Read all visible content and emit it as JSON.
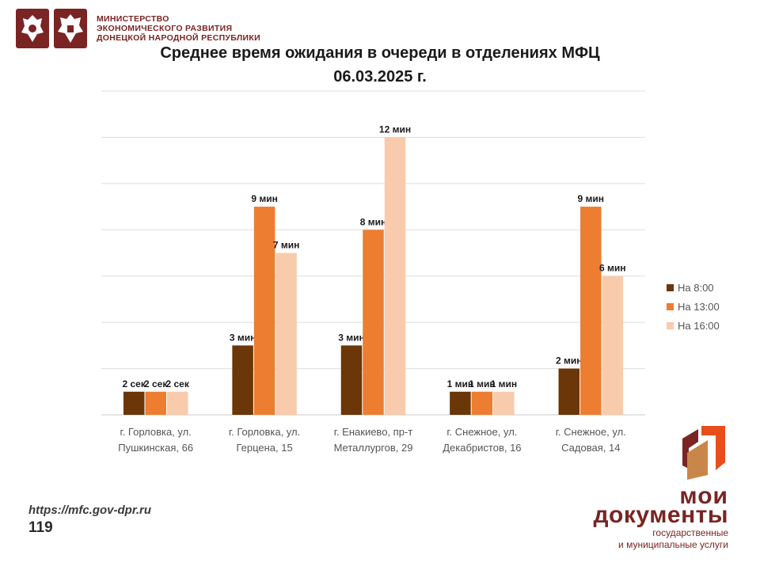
{
  "header": {
    "ministry_line1": "МИНИСТЕРСТВО",
    "ministry_line2": "ЭКОНОМИЧЕСКОГО РАЗВИТИЯ",
    "ministry_line3": "ДОНЕЦКОЙ НАРОДНОЙ РЕСПУБЛИКИ"
  },
  "footer": {
    "url": "https://mfc.gov-dpr.ru",
    "page_number": "119"
  },
  "brand": {
    "line1": "мои",
    "line2": "документы",
    "line3": "государственные",
    "line4": "и муниципальные услуги"
  },
  "chart_data": {
    "type": "bar",
    "title_line1": "Среднее время ожидания в очереди в отделениях МФЦ",
    "title_line2": "06.03.2025 г.",
    "categories": [
      [
        "г. Горловка, ул.",
        "Пушкинская, 66"
      ],
      [
        "г. Горловка, ул.",
        "Герцена, 15"
      ],
      [
        "г. Енакиево, пр-т",
        "Металлургов, 29"
      ],
      [
        "г. Снежное, ул.",
        "Декабристов, 16"
      ],
      [
        "г. Снежное, ул.",
        "Садовая, 14"
      ]
    ],
    "series": [
      {
        "name": "На 8:00",
        "color": "#6b3608",
        "values": [
          1,
          3,
          3,
          1,
          2
        ],
        "labels": [
          "2 сек",
          "3 мин",
          "3 мин",
          "1 мин",
          "2 мин"
        ]
      },
      {
        "name": "На 13:00",
        "color": "#ed7d31",
        "values": [
          1,
          9,
          8,
          1,
          9
        ],
        "labels": [
          "2 сек",
          "9 мин",
          "8 мин",
          "1 мин",
          "9 мин"
        ]
      },
      {
        "name": "На 16:00",
        "color": "#f8cbad",
        "values": [
          1,
          7,
          12,
          1,
          6
        ],
        "labels": [
          "2 сек",
          "7 мин",
          "12 мин",
          "1 мин",
          "6 мин"
        ]
      }
    ],
    "ylim": [
      0,
      14
    ],
    "grid": true,
    "legend_position": "right",
    "ytick_labels": false
  }
}
